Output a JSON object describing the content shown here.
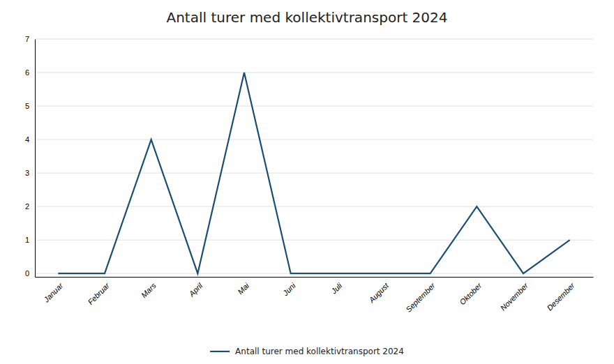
{
  "chart_data": {
    "type": "line",
    "title": "Antall turer med kollektivtransport 2024",
    "categories": [
      "Januar",
      "Februar",
      "Mars",
      "April",
      "Mai",
      "Juni",
      "Juli",
      "August",
      "September",
      "Oktober",
      "November",
      "Desember"
    ],
    "series": [
      {
        "name": "Antall turer med kollektivtransport 2024",
        "color": "#1b4f72",
        "values": [
          0,
          0,
          4,
          0,
          6,
          0,
          0,
          0,
          0,
          2,
          0,
          1
        ]
      }
    ],
    "ylim": [
      -0.1,
      7
    ],
    "yticks": [
      0,
      1,
      2,
      3,
      4,
      5,
      6,
      7
    ],
    "grid": true,
    "legend": "bottom"
  }
}
